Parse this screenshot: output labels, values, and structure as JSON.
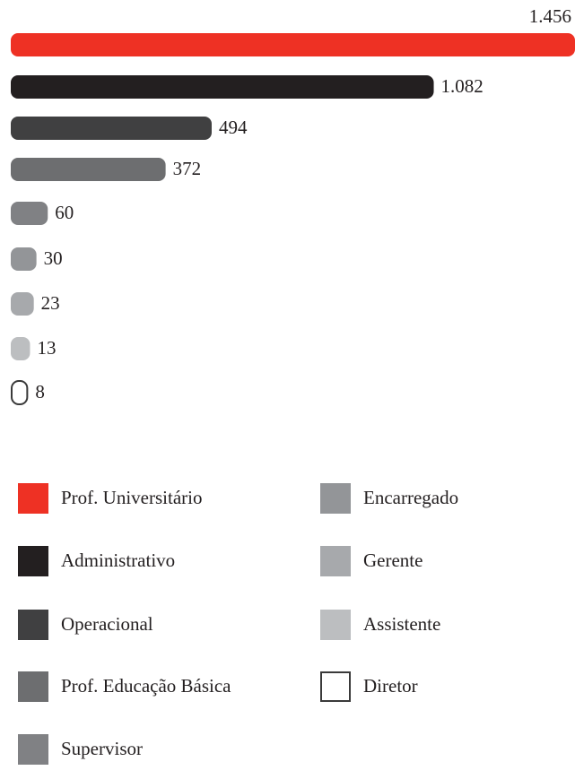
{
  "chart_data": {
    "type": "hbar",
    "categories": [
      "Prof. Universitário",
      "Administrativo",
      "Operacional",
      "Prof. Educação Básica",
      "Supervisor",
      "Encarregado",
      "Gerente",
      "Assistente",
      "Diretor"
    ],
    "values": [
      1456,
      1082,
      494,
      372,
      60,
      30,
      23,
      13,
      8
    ],
    "value_labels": [
      "1.456",
      "1.082",
      "494",
      "372",
      "60",
      "30",
      "23",
      "13",
      "8"
    ],
    "colors": [
      "#ee3124",
      "#231f20",
      "#404041",
      "#6d6e70",
      "#808184",
      "#939598",
      "#a7a9ac",
      "#bcbec0",
      "#ffffff"
    ],
    "legend": true
  }
}
